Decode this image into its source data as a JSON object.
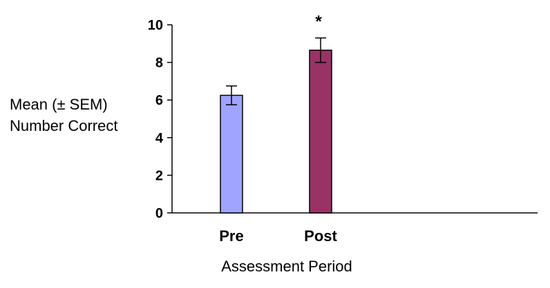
{
  "chart_data": {
    "type": "bar",
    "categories": [
      "Pre",
      "Post"
    ],
    "values": [
      6.25,
      8.65
    ],
    "errors": [
      0.5,
      0.65
    ],
    "colors": [
      "#A0A4FF",
      "#993366"
    ],
    "annotations": [
      "",
      "*"
    ],
    "ylabel_lines": [
      "Mean (± SEM)",
      "Number Correct"
    ],
    "xlabel": "Assessment Period",
    "ylim": [
      0,
      10
    ],
    "yticks": [
      "0",
      "2",
      "4",
      "6",
      "8",
      "10"
    ],
    "grid": false
  }
}
